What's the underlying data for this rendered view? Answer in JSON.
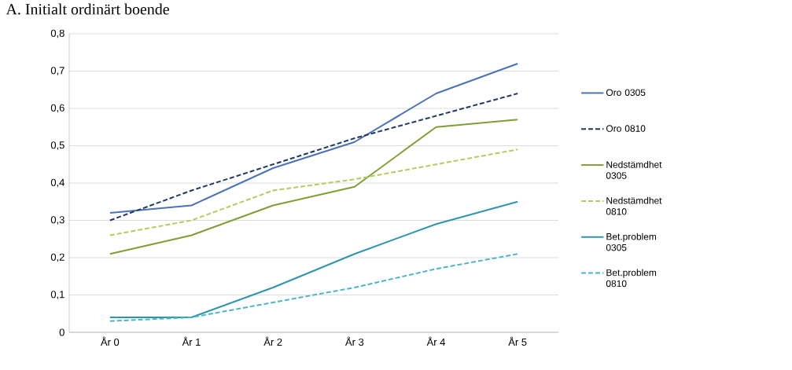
{
  "chart_data": {
    "type": "line",
    "title": "A.  Initialt ordinärt boende",
    "categories": [
      "År 0",
      "År 1",
      "År 2",
      "År 3",
      "År 4",
      "År 5"
    ],
    "series": [
      {
        "name": "Oro 0305",
        "color": "#4a72b8",
        "line_style": "solid",
        "values": [
          0.32,
          0.34,
          0.44,
          0.51,
          0.64,
          0.72
        ]
      },
      {
        "name": "Oro 0810",
        "color": "#1f3864",
        "line_style": "dashed",
        "values": [
          0.3,
          0.38,
          0.45,
          0.52,
          0.58,
          0.64
        ]
      },
      {
        "name": "Nedstämdhet 0305",
        "color": "#7f9e34",
        "line_style": "solid",
        "values": [
          0.21,
          0.26,
          0.34,
          0.39,
          0.55,
          0.57
        ]
      },
      {
        "name": "Nedstämdhet 0810",
        "color": "#b3cc5c",
        "line_style": "dashed",
        "values": [
          0.26,
          0.3,
          0.38,
          0.41,
          0.45,
          0.49
        ]
      },
      {
        "name": "Bet.problem 0305",
        "color": "#2e96aa",
        "line_style": "solid",
        "values": [
          0.04,
          0.04,
          0.12,
          0.21,
          0.29,
          0.35
        ]
      },
      {
        "name": "Bet.problem 0810",
        "color": "#4bb6c9",
        "line_style": "dashed",
        "values": [
          0.03,
          0.04,
          0.08,
          0.12,
          0.17,
          0.21
        ]
      }
    ],
    "ylim": [
      0,
      0.8
    ],
    "yticks": [
      0,
      {
        "value": 0.1,
        "label": "0,1"
      },
      {
        "value": 0.2,
        "label": "0,2"
      },
      {
        "value": 0.3,
        "label": "0,3"
      },
      {
        "value": 0.4,
        "label": "0,4"
      },
      {
        "value": 0.5,
        "label": "0,5"
      },
      {
        "value": 0.6,
        "label": "0,6"
      },
      {
        "value": 0.7,
        "label": "0,7"
      },
      {
        "value": 0.8,
        "label": "0,8"
      }
    ],
    "grid": "y",
    "legend": "right",
    "marker": "none"
  }
}
